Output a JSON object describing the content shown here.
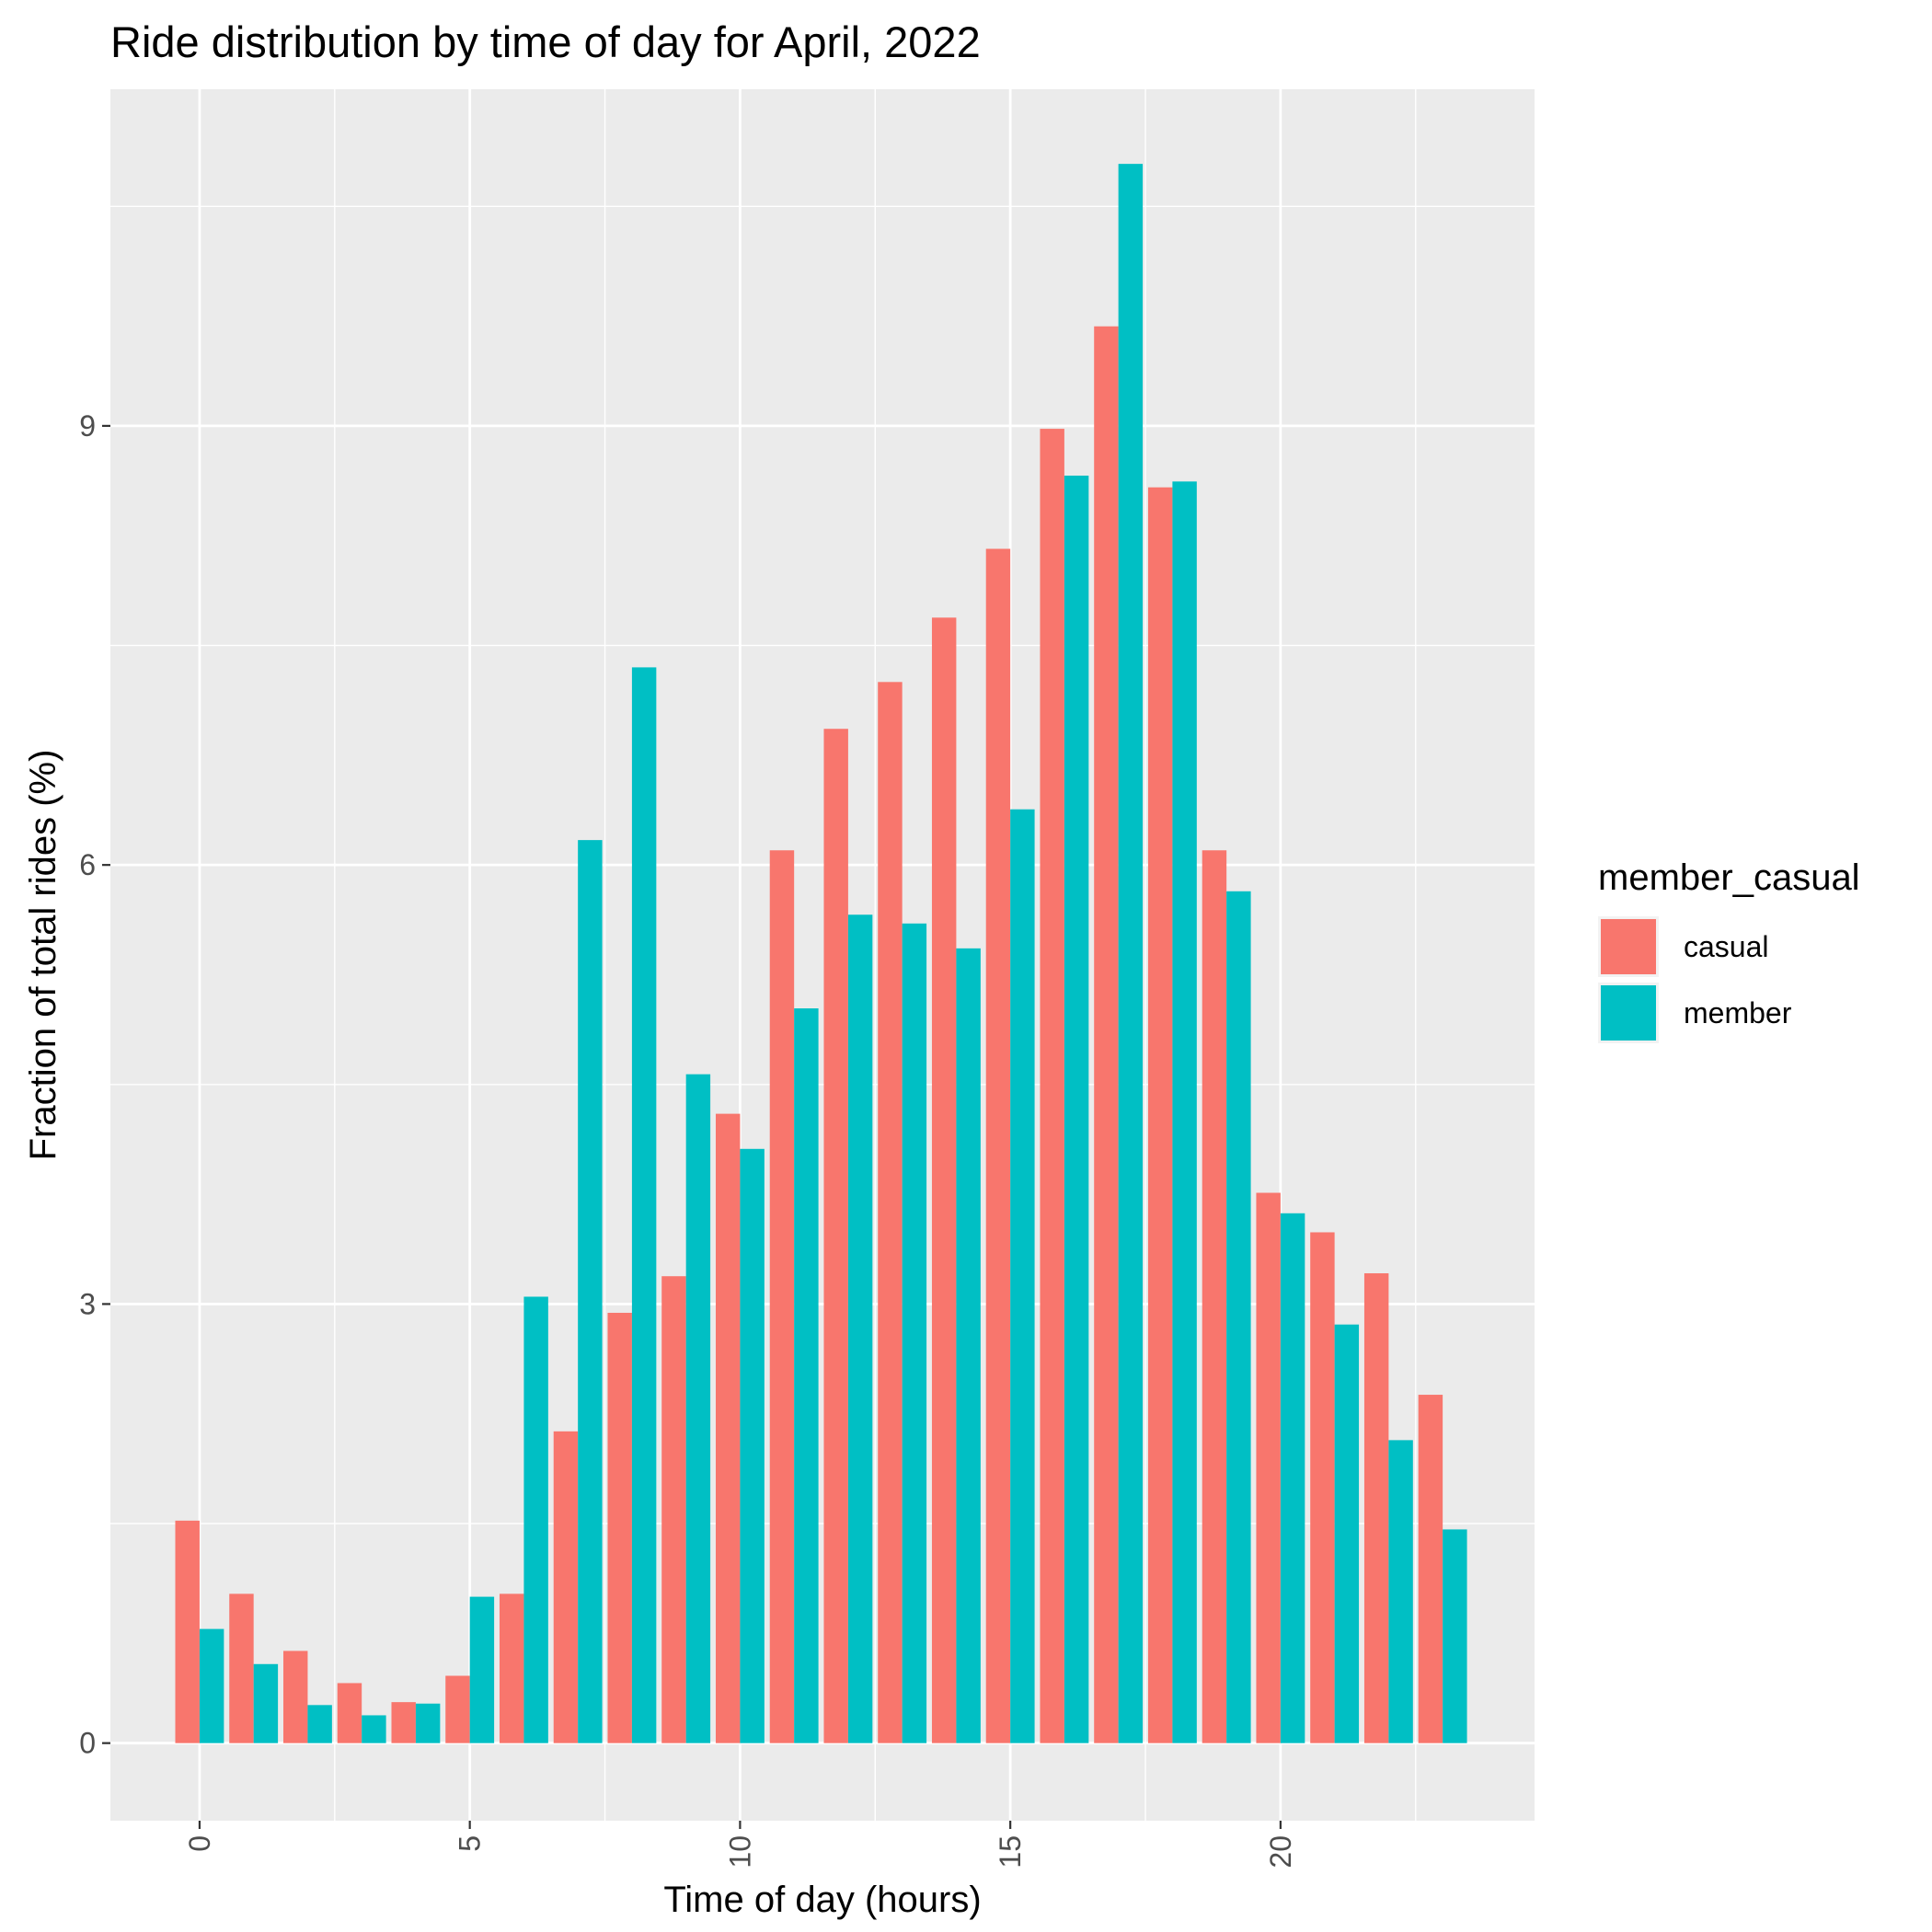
{
  "chart_data": {
    "type": "bar",
    "title": "Ride distribution by time of day for April, 2022",
    "xlabel": "Time of day (hours)",
    "ylabel": "Fraction of total rides (%)",
    "x": [
      0,
      1,
      2,
      3,
      4,
      5,
      6,
      7,
      8,
      9,
      10,
      11,
      12,
      13,
      14,
      15,
      16,
      17,
      18,
      19,
      20,
      21,
      22,
      23
    ],
    "x_ticks": [
      0,
      5,
      10,
      15,
      20
    ],
    "y_ticks": [
      0,
      3,
      6,
      9
    ],
    "xlim": [
      -1.65,
      24.7
    ],
    "ylim": [
      -0.53,
      11.3
    ],
    "grid": true,
    "legend_title": "member_casual",
    "legend_position": "right",
    "series": [
      {
        "name": "casual",
        "color": "#F8766D",
        "values": [
          1.52,
          1.02,
          0.63,
          0.41,
          0.28,
          0.46,
          1.02,
          2.13,
          2.94,
          3.19,
          4.3,
          6.1,
          6.93,
          7.25,
          7.69,
          8.16,
          8.98,
          9.68,
          8.58,
          6.1,
          3.76,
          3.49,
          3.21,
          2.38
        ]
      },
      {
        "name": "member",
        "color": "#00BFC4",
        "values": [
          0.78,
          0.54,
          0.26,
          0.19,
          0.27,
          1.0,
          3.05,
          6.17,
          7.35,
          4.57,
          4.06,
          5.02,
          5.66,
          5.6,
          5.43,
          6.38,
          8.66,
          10.79,
          8.62,
          5.82,
          3.62,
          2.86,
          2.07,
          1.46
        ]
      }
    ]
  }
}
